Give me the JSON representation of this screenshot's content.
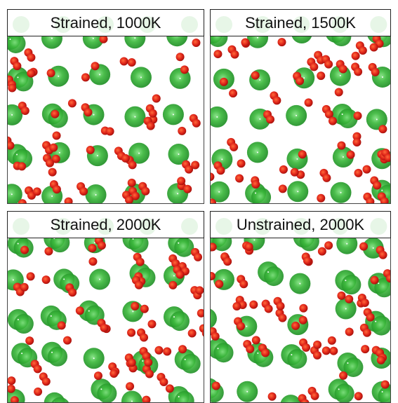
{
  "panels": [
    {
      "title": "Strained, 1000K"
    },
    {
      "title": "Strained, 1500K"
    },
    {
      "title": "Strained, 2000K"
    },
    {
      "title": "Unstrained, 2000K"
    }
  ]
}
